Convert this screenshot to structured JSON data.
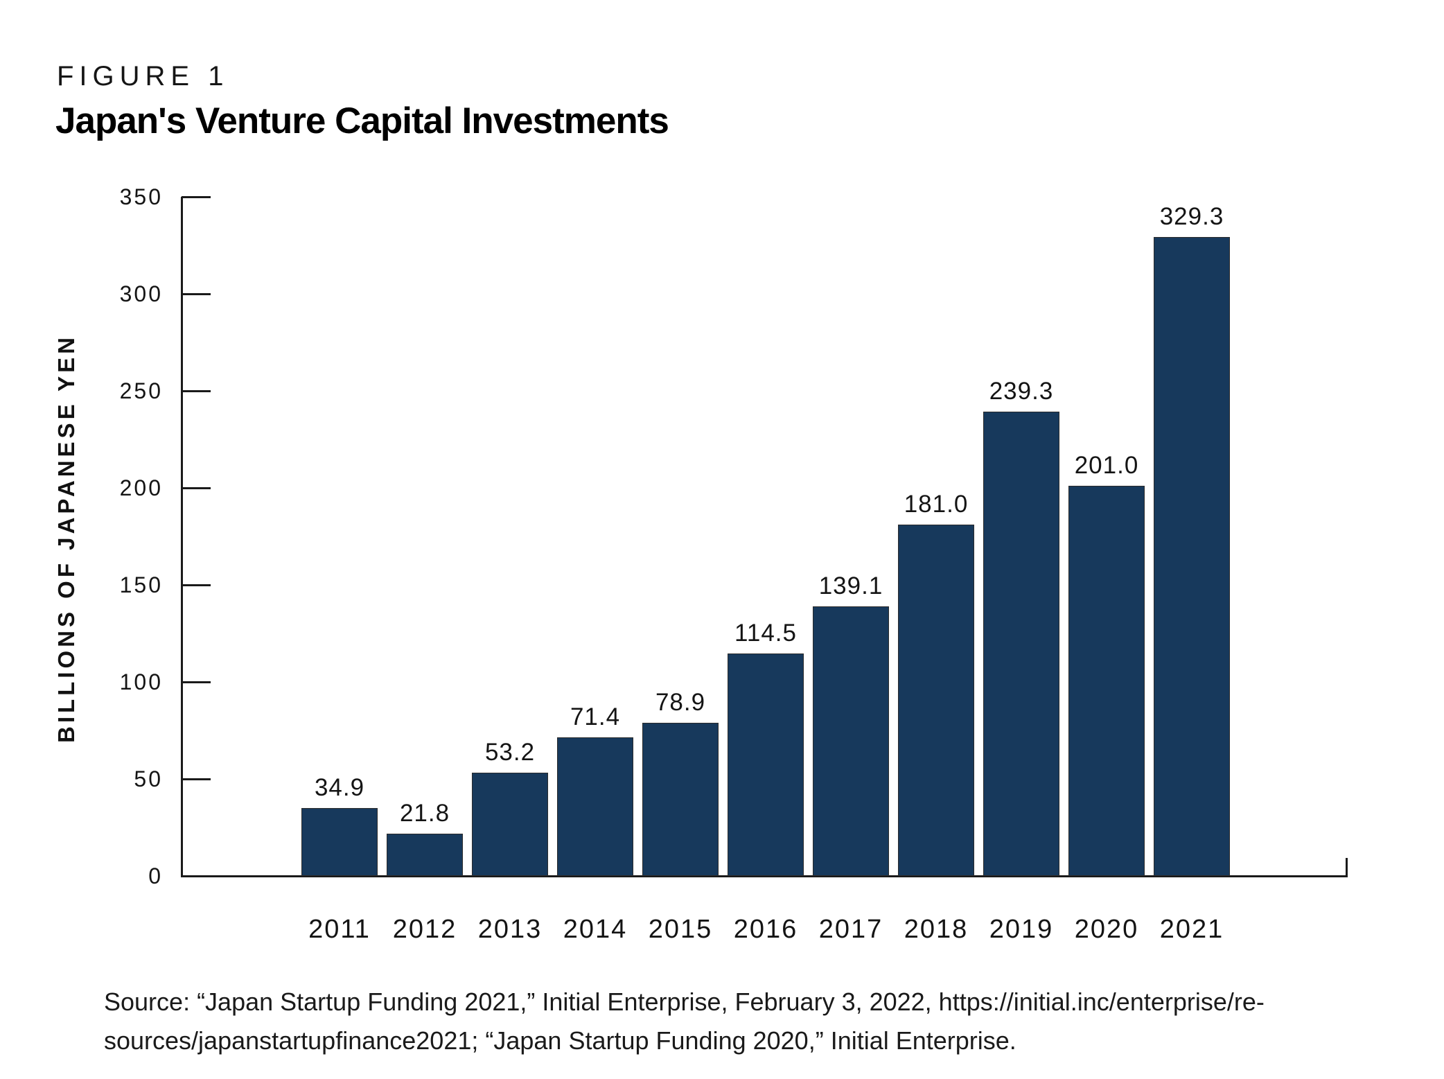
{
  "figure": {
    "label": "FIGURE 1",
    "title": "Japan's Venture Capital Investments"
  },
  "chart_data": {
    "type": "bar",
    "title": "Japan's Venture Capital Investments",
    "categories": [
      "2011",
      "2012",
      "2013",
      "2014",
      "2015",
      "2016",
      "2017",
      "2018",
      "2019",
      "2020",
      "2021"
    ],
    "values": [
      34.9,
      21.8,
      53.2,
      71.4,
      78.9,
      114.5,
      139.1,
      181.0,
      239.3,
      201.0,
      329.3
    ],
    "value_labels": [
      "34.9",
      "21.8",
      "53.2",
      "71.4",
      "78.9",
      "114.5",
      "139.1",
      "181.0",
      "239.3",
      "201.0",
      "329.3"
    ],
    "xlabel": "",
    "ylabel": "BILLIONS OF JAPANESE YEN",
    "ylim": [
      0,
      350
    ],
    "ytick_step": 50,
    "yticks": [
      "0",
      "50",
      "100",
      "150",
      "200",
      "250",
      "300",
      "350"
    ],
    "grid": false,
    "legend": "none",
    "bar_color": "#17395C",
    "bar_border_color": "#2b2b2b",
    "axis_color": "#1a1a1a"
  },
  "source": {
    "line1": "Source: “Japan Startup Funding 2021,” Initial Enterprise, February 3, 2022, https://initial.inc/enterprise/re-",
    "line2": "sources/japanstartupfinance2021; “Japan Startup Funding 2020,” Initial Enterprise."
  }
}
